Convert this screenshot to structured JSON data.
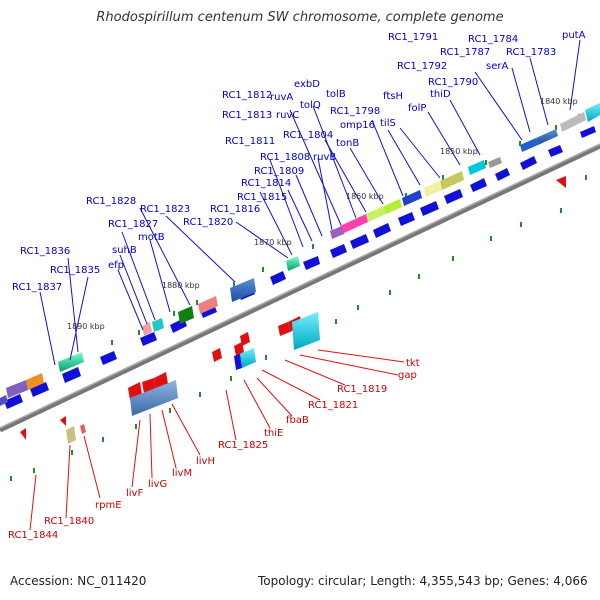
{
  "title": "Rhodospirillum centenum SW chromosome, complete genome",
  "footer": {
    "accession": "Accession: NC_011420",
    "summary": "Topology: circular; Length: 4,355,543 bp; Genes: 4,066"
  },
  "kbp_markers": [
    "1840 kbp",
    "1850 kbp",
    "1860 kbp",
    "1870 kbp",
    "1880 kbp",
    "1890 kbp"
  ],
  "top_labels": [
    "RC1_1791",
    "RC1_1784",
    "putA",
    "RC1_1787",
    "RC1_1783",
    "RC1_1792",
    "serA",
    "thiD",
    "RC1_1790",
    "exbD",
    "tolB",
    "ruvA",
    "tolQ",
    "RC1_1812",
    "ftsH",
    "RC1_1798",
    "folP",
    "RC1_1813",
    "ruvC",
    "omp16",
    "tilS",
    "RC1_1804",
    "tonB",
    "RC1_1811",
    "ruvB",
    "RC1_1808",
    "RC1_1809",
    "RC1_1814",
    "RC1_1815",
    "RC1_1816",
    "RC1_1828",
    "RC1_1823",
    "motB",
    "RC1_1827",
    "RC1_1820",
    "suhB",
    "RC1_1836",
    "efp",
    "RC1_1835",
    "RC1_1837"
  ],
  "bottom_labels": [
    "tkt",
    "gap",
    "RC1_1819",
    "RC1_1821",
    "fbaB",
    "thiE",
    "RC1_1825",
    "livH",
    "livM",
    "livG",
    "livF",
    "rpmE",
    "RC1_1840",
    "RC1_1844"
  ],
  "colors": {
    "forward": "#1010d8",
    "reverse": "#e01010",
    "backbone": "#777777",
    "top_label": "#0000cc",
    "bottom_label": "#cc0000"
  }
}
